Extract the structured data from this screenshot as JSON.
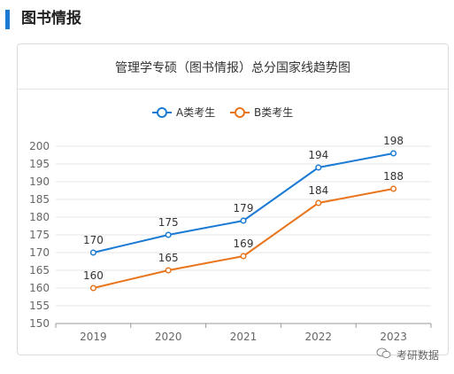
{
  "section": {
    "title": "图书情报",
    "accent": "#1a7ad4"
  },
  "watermark": {
    "text": "考研数据",
    "icon": "wechat-icon"
  },
  "chart_data": {
    "type": "line",
    "title": "管理学专硕（图书情报）总分国家线趋势图",
    "categories": [
      "2019",
      "2020",
      "2021",
      "2022",
      "2023"
    ],
    "ylim": [
      150,
      200
    ],
    "yticks": [
      150,
      155,
      160,
      165,
      170,
      175,
      180,
      185,
      190,
      195,
      200
    ],
    "grid": true,
    "legend": "top-center",
    "series": [
      {
        "name": "A类考生",
        "values": [
          170,
          175,
          179,
          194,
          198
        ],
        "color": "#1a7ad4"
      },
      {
        "name": "B类考生",
        "values": [
          160,
          165,
          169,
          184,
          188
        ],
        "color": "#e8741c"
      }
    ]
  }
}
